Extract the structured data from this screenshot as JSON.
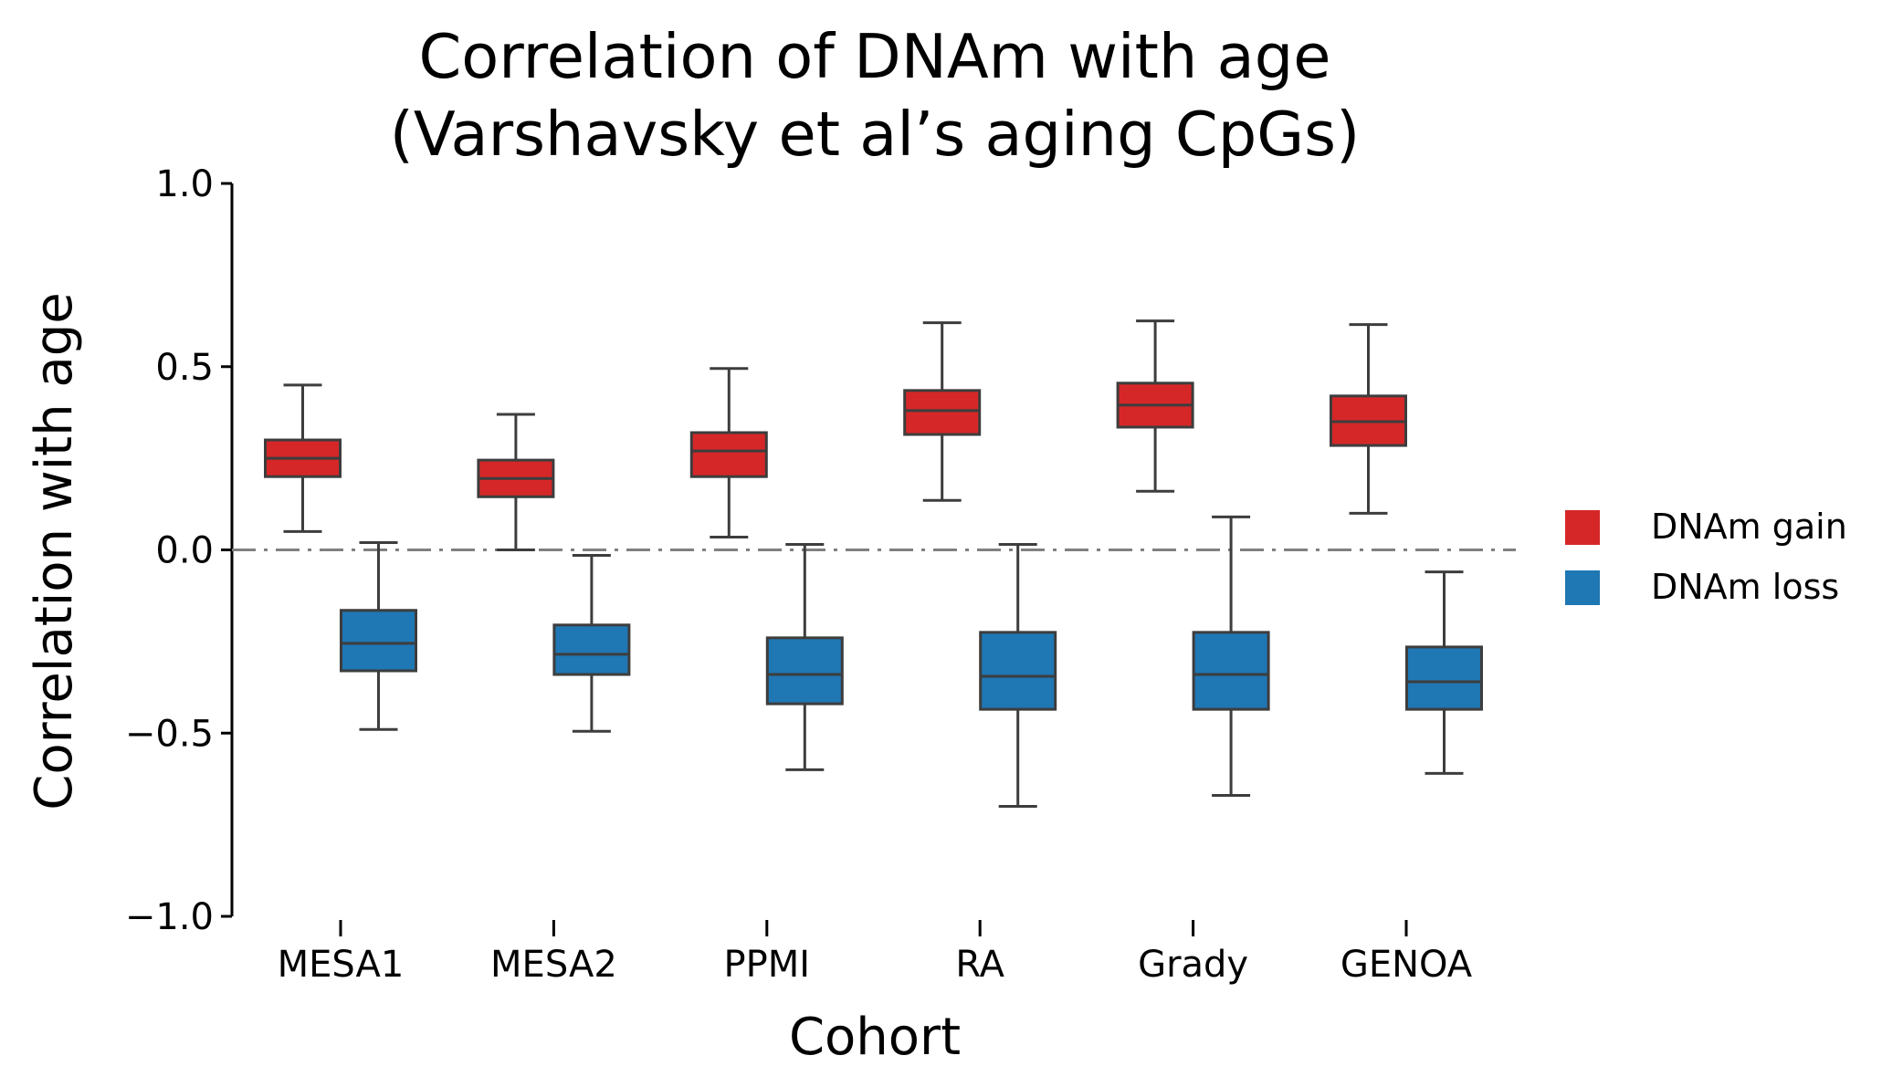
{
  "chart_data": {
    "type": "box",
    "title_lines": [
      "Correlation of DNAm with age",
      "(Varshavsky et al’s aging CpGs)"
    ],
    "xlabel": "Cohort",
    "ylabel": "Correlation with age",
    "ylim": [
      -1.0,
      1.0
    ],
    "yticks": [
      {
        "value": 1.0,
        "label": "1.0"
      },
      {
        "value": 0.5,
        "label": "0.5"
      },
      {
        "value": 0.0,
        "label": "0.0"
      },
      {
        "value": -0.5,
        "label": "−0.5"
      },
      {
        "value": -1.0,
        "label": "−1.0"
      }
    ],
    "categories": [
      "MESA1",
      "MESA2",
      "PPMI",
      "RA",
      "Grady",
      "GENOA"
    ],
    "reference_line": {
      "y": 0.0,
      "style": "dash-dot",
      "color": "#808080"
    },
    "legend_position": "right",
    "series": [
      {
        "name": "DNAm gain",
        "color": "#d62728",
        "boxes": [
          {
            "min": 0.05,
            "q1": 0.2,
            "median": 0.25,
            "q3": 0.3,
            "max": 0.45
          },
          {
            "min": 0.0,
            "q1": 0.145,
            "median": 0.195,
            "q3": 0.245,
            "max": 0.37
          },
          {
            "min": 0.035,
            "q1": 0.2,
            "median": 0.27,
            "q3": 0.32,
            "max": 0.495
          },
          {
            "min": 0.135,
            "q1": 0.315,
            "median": 0.38,
            "q3": 0.435,
            "max": 0.62
          },
          {
            "min": 0.16,
            "q1": 0.335,
            "median": 0.395,
            "q3": 0.455,
            "max": 0.625
          },
          {
            "min": 0.1,
            "q1": 0.285,
            "median": 0.35,
            "q3": 0.42,
            "max": 0.615
          }
        ]
      },
      {
        "name": "DNAm loss",
        "color": "#1f77b4",
        "boxes": [
          {
            "min": -0.49,
            "q1": -0.33,
            "median": -0.255,
            "q3": -0.165,
            "max": 0.02
          },
          {
            "min": -0.495,
            "q1": -0.34,
            "median": -0.285,
            "q3": -0.205,
            "max": -0.015
          },
          {
            "min": -0.6,
            "q1": -0.42,
            "median": -0.34,
            "q3": -0.24,
            "max": 0.015
          },
          {
            "min": -0.7,
            "q1": -0.435,
            "median": -0.345,
            "q3": -0.225,
            "max": 0.015
          },
          {
            "min": -0.67,
            "q1": -0.435,
            "median": -0.34,
            "q3": -0.225,
            "max": 0.09
          },
          {
            "min": -0.61,
            "q1": -0.435,
            "median": -0.36,
            "q3": -0.265,
            "max": -0.06
          }
        ]
      }
    ]
  }
}
